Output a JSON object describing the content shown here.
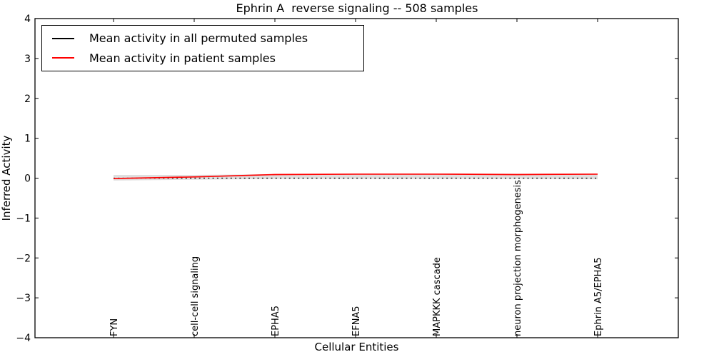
{
  "title": "Ephrin A  reverse signaling -- 508 samples",
  "legend": {
    "items": [
      {
        "label": "Mean activity in all permuted samples",
        "color": "#000000"
      },
      {
        "label": "Mean activity in patient samples",
        "color": "#ff0000"
      }
    ]
  },
  "axes": {
    "ylabel": "Inferred Activity",
    "xlabel": "Cellular Entities",
    "y_tick_labels": [
      "4",
      "3",
      "2",
      "1",
      "0",
      "−1",
      "−2",
      "−3",
      "−4"
    ],
    "y_tick_values": [
      4,
      3,
      2,
      1,
      0,
      -1,
      -2,
      -3,
      -4
    ]
  },
  "chart_data": {
    "type": "line",
    "title": "Ephrin A  reverse signaling -- 508 samples",
    "xlabel": "Cellular Entities",
    "ylabel": "Inferred Activity",
    "ylim": [
      -4,
      4
    ],
    "grid": false,
    "legend_position": "upper left",
    "categories": [
      "FYN",
      "cell-cell signaling",
      "EPHA5",
      "EFNA5",
      "MAPKKK cascade",
      "neuron projection morphogenesis",
      "Ephrin A5/EPHA5"
    ],
    "series": [
      {
        "name": "Mean activity in all permuted samples",
        "color": "#000000",
        "style": "dotted",
        "values": [
          0,
          0,
          0,
          0,
          0,
          0,
          0
        ]
      },
      {
        "name": "Mean activity in patient samples",
        "color": "#ff0000",
        "style": "solid",
        "values": [
          -0.01,
          0.03,
          0.09,
          0.1,
          0.1,
          0.09,
          0.1
        ]
      }
    ],
    "band": {
      "color": "#d9d9d9",
      "upper": [
        0.08,
        0.08,
        0.1,
        0.11,
        0.11,
        0.11,
        0.11
      ],
      "lower": [
        -0.06,
        -0.04,
        -0.02,
        -0.02,
        -0.02,
        -0.02,
        -0.03
      ]
    }
  }
}
